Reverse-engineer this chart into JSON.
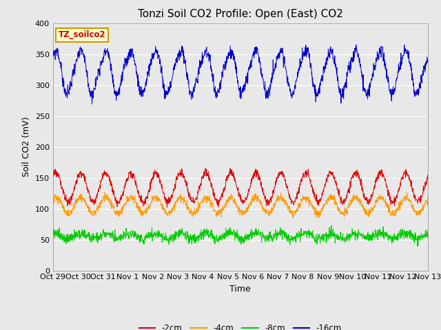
{
  "title": "Tonzi Soil CO2 Profile: Open (East) CO2",
  "xlabel": "Time",
  "ylabel": "Soil CO2 (mV)",
  "ylim": [
    0,
    400
  ],
  "yticks": [
    0,
    50,
    100,
    150,
    200,
    250,
    300,
    350,
    400
  ],
  "xtick_labels": [
    "Oct 29",
    "Oct 30",
    "Oct 31",
    "Nov 1",
    "Nov 2",
    "Nov 3",
    "Nov 4",
    "Nov 5",
    "Nov 6",
    "Nov 7",
    "Nov 8",
    "Nov 9",
    "Nov 10",
    "Nov 11",
    "Nov 12",
    "Nov 13"
  ],
  "watermark_text": "TZ_soilco2",
  "watermark_color": "#cc0000",
  "watermark_bg": "#ffffcc",
  "watermark_border": "#cc9900",
  "background_color": "#e8e8e8",
  "plot_bg_color": "#e8e8e8",
  "title_fontsize": 11,
  "axis_label_fontsize": 9,
  "tick_fontsize": 8,
  "legend_entries": [
    "-2cm",
    "-4cm",
    "-8cm",
    "-16cm"
  ],
  "line_colors": [
    "#dd0000",
    "#ff9900",
    "#00cc00",
    "#0000cc"
  ],
  "n_points": 1440,
  "days": 15,
  "seed": 99,
  "blue_mean": 335,
  "blue_amp": 20,
  "blue_noise": 5,
  "blue_dip_depth": 38,
  "red_mean": 143,
  "red_amp": 18,
  "red_noise": 3,
  "red_dip_depth": 18,
  "orange_mean": 110,
  "orange_amp": 10,
  "orange_noise": 3,
  "orange_dip_depth": 10,
  "green_mean": 58,
  "green_amp": 3,
  "green_noise": 4,
  "green_dip_depth": 4
}
